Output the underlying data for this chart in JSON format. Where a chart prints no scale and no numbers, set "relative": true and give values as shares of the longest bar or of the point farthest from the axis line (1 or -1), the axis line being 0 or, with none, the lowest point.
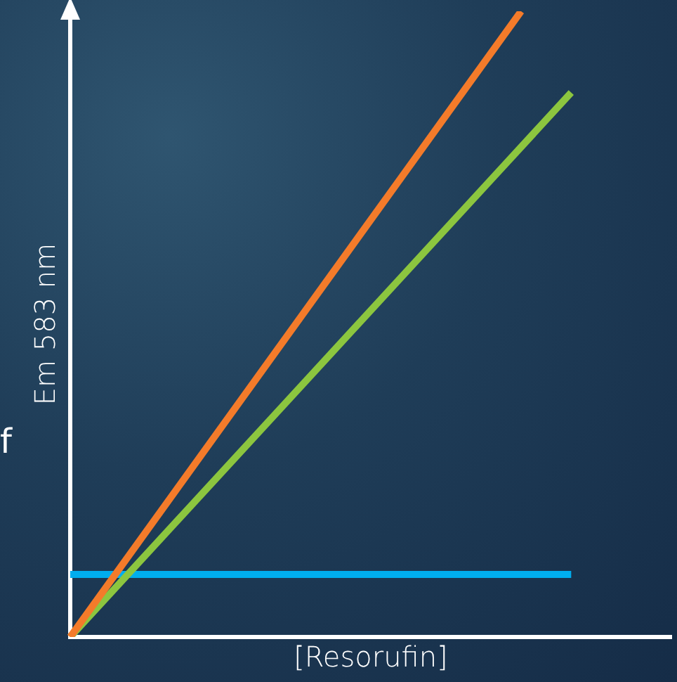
{
  "chart_data": {
    "type": "line",
    "relative": true,
    "xlabel": "[Resorufin]",
    "ylabel": "Em 583 nm",
    "annotations": [
      "f"
    ],
    "categories": [
      null,
      null,
      null,
      null,
      null,
      null,
      null,
      null,
      null,
      null,
      null,
      null,
      null
    ],
    "series": [
      {
        "color": "#f47b2a",
        "values": [
          0,
          null,
          null,
          null,
          null,
          null,
          null,
          null,
          null,
          1,
          null,
          null,
          null
        ]
      },
      {
        "color": "#8cc63f",
        "values": [
          0,
          null,
          null,
          null,
          null,
          null,
          null,
          null,
          null,
          null,
          0.87,
          null,
          null
        ]
      },
      {
        "color": "#00aeef",
        "values": [
          0.1,
          null,
          null,
          null,
          null,
          null,
          null,
          null,
          null,
          null,
          0.1,
          null,
          null
        ]
      }
    ],
    "legend": false,
    "grid": false,
    "tick_labels": false,
    "marker": "none",
    "line_style": "solid"
  }
}
